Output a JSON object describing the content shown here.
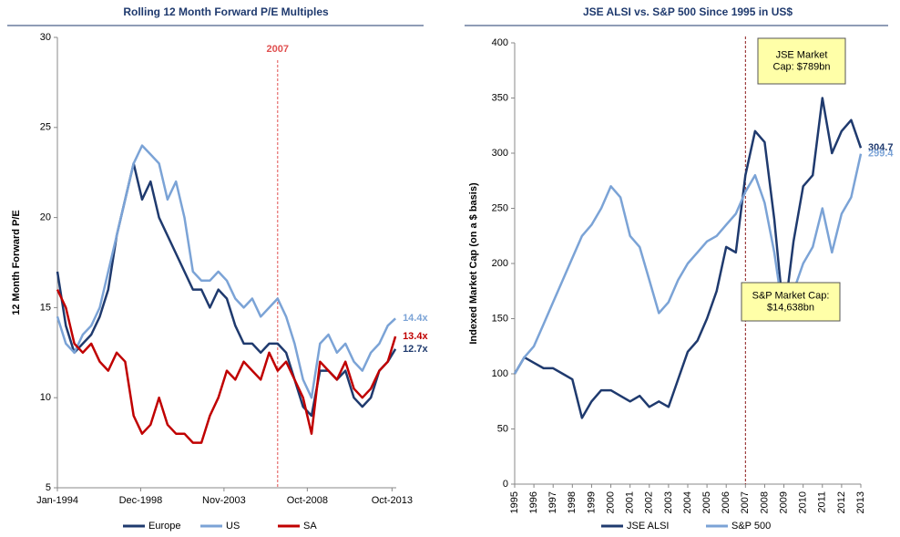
{
  "chart_data": [
    {
      "type": "line",
      "title": "Rolling 12 Month Forward P/E Multiples",
      "ylabel": "12 Month Forward P/E",
      "x": [
        1994,
        1994.5,
        1995,
        1995.5,
        1996,
        1996.5,
        1997,
        1997.5,
        1998,
        1998.5,
        1999,
        1999.5,
        2000,
        2000.5,
        2001,
        2001.5,
        2002,
        2002.5,
        2003,
        2003.5,
        2004,
        2004.5,
        2005,
        2005.5,
        2006,
        2006.5,
        2007,
        2007.5,
        2008,
        2008.5,
        2009,
        2009.5,
        2010,
        2010.5,
        2011,
        2011.5,
        2012,
        2012.5,
        2013,
        2013.5,
        2013.95
      ],
      "series": [
        {
          "name": "Europe",
          "color": "#1f3a6e",
          "values": [
            17,
            14,
            12.5,
            13,
            13.5,
            14.5,
            16,
            19,
            21,
            23,
            21,
            22,
            20,
            19,
            18,
            17,
            16,
            16,
            15,
            16,
            15.5,
            14,
            13,
            13,
            12.5,
            13,
            13,
            12.5,
            11,
            9.5,
            9,
            11.5,
            11.5,
            11,
            11.5,
            10,
            9.5,
            10,
            11.5,
            12,
            12.7
          ],
          "value_labels": [
            null,
            null,
            null,
            null,
            null,
            null,
            null,
            null,
            null,
            null,
            null,
            null,
            null,
            null,
            null,
            null,
            null,
            null,
            null,
            null,
            null,
            null,
            null,
            null,
            null,
            null,
            null,
            null,
            null,
            null,
            null,
            null,
            null,
            null,
            null,
            null,
            null,
            null,
            null,
            null,
            "12.7x"
          ]
        },
        {
          "name": "US",
          "color": "#7ba3d6",
          "values": [
            14.5,
            13,
            12.5,
            13.5,
            14,
            15,
            17,
            19,
            21,
            23,
            24,
            23.5,
            23,
            21,
            22,
            20,
            17,
            16.5,
            16.5,
            17,
            16.5,
            15.5,
            15,
            15.5,
            14.5,
            15,
            15.5,
            14.5,
            13,
            11,
            10,
            13,
            13.5,
            12.5,
            13,
            12,
            11.5,
            12.5,
            13,
            14,
            14.4
          ],
          "value_labels": [
            null,
            null,
            null,
            null,
            null,
            null,
            null,
            null,
            null,
            null,
            null,
            null,
            null,
            null,
            null,
            null,
            null,
            null,
            null,
            null,
            null,
            null,
            null,
            null,
            null,
            null,
            null,
            null,
            null,
            null,
            null,
            null,
            null,
            null,
            null,
            null,
            null,
            null,
            null,
            null,
            "14.4x"
          ]
        },
        {
          "name": "SA",
          "color": "#c00000",
          "values": [
            16,
            15,
            13,
            12.5,
            13,
            12,
            11.5,
            12.5,
            12,
            9,
            8,
            8.5,
            10,
            8.5,
            8,
            8,
            7.5,
            7.5,
            9,
            10,
            11.5,
            11,
            12,
            11.5,
            11,
            12.5,
            11.5,
            12,
            11,
            10,
            8,
            12,
            11.5,
            11,
            12,
            10.5,
            10,
            10.5,
            11.5,
            12,
            13.4
          ],
          "value_labels": [
            null,
            null,
            null,
            null,
            null,
            null,
            null,
            null,
            null,
            null,
            null,
            null,
            null,
            null,
            null,
            null,
            null,
            null,
            null,
            null,
            null,
            null,
            null,
            null,
            null,
            null,
            null,
            null,
            null,
            null,
            null,
            null,
            null,
            null,
            null,
            null,
            null,
            null,
            null,
            null,
            "13.4x"
          ]
        }
      ],
      "xlim": [
        1994,
        2014
      ],
      "xticks": [
        {
          "value": 1994,
          "label": "Jan-1994"
        },
        {
          "value": 1998.917,
          "label": "Dec-1998"
        },
        {
          "value": 2003.833,
          "label": "Nov-2003"
        },
        {
          "value": 2008.75,
          "label": "Oct-2008"
        },
        {
          "value": 2013.75,
          "label": "Oct-2013"
        }
      ],
      "ylim": [
        5,
        30
      ],
      "yticks": [
        5,
        10,
        15,
        20,
        25,
        30
      ],
      "vline": 2007,
      "vline_color": "#e05050",
      "vline_labeled": true
    },
    {
      "type": "line",
      "title": "JSE ALSI vs. S&P 500 Since 1995 in US$",
      "ylabel": "Indexed Market Cap (on a $ basis)",
      "x": [
        1995,
        1995.5,
        1996,
        1996.5,
        1997,
        1997.5,
        1998,
        1998.5,
        1999,
        1999.5,
        2000,
        2000.5,
        2001,
        2001.5,
        2002,
        2002.5,
        2003,
        2003.5,
        2004,
        2004.5,
        2005,
        2005.5,
        2006,
        2006.5,
        2007,
        2007.5,
        2008,
        2008.5,
        2009,
        2009.5,
        2010,
        2010.5,
        2011,
        2011.5,
        2012,
        2012.5,
        2013
      ],
      "series": [
        {
          "name": "JSE ALSI",
          "color": "#1f3a6e",
          "values": [
            100,
            115,
            110,
            105,
            105,
            100,
            95,
            60,
            75,
            85,
            85,
            80,
            75,
            80,
            70,
            75,
            70,
            95,
            120,
            130,
            150,
            175,
            215,
            210,
            280,
            320,
            310,
            240,
            150,
            220,
            270,
            280,
            350,
            300,
            320,
            330,
            304.7
          ]
        },
        {
          "name": "S&P 500",
          "color": "#7ba3d6",
          "values": [
            100,
            115,
            125,
            145,
            165,
            185,
            205,
            225,
            235,
            250,
            270,
            260,
            225,
            215,
            185,
            155,
            165,
            185,
            200,
            210,
            220,
            225,
            235,
            245,
            265,
            280,
            255,
            210,
            150,
            175,
            200,
            215,
            250,
            210,
            245,
            260,
            299.4
          ]
        }
      ],
      "end_labels": true,
      "xlim": [
        1995,
        2013
      ],
      "xticks": [
        1995,
        1996,
        1997,
        1998,
        1999,
        2000,
        2001,
        2002,
        2003,
        2004,
        2005,
        2006,
        2007,
        2008,
        2009,
        2010,
        2011,
        2012,
        2013
      ],
      "ylim": [
        0,
        400
      ],
      "yticks": [
        0,
        50,
        100,
        150,
        200,
        250,
        300,
        350,
        400
      ],
      "vline": 2007,
      "vline_color": "#8b1a1a",
      "vline_labeled": false,
      "annotations": [
        {
          "lines": [
            "JSE Market",
            "Cap:  $789bn"
          ]
        },
        {
          "lines": [
            "S&P Market Cap:",
            "$14,638bn"
          ]
        }
      ]
    }
  ]
}
